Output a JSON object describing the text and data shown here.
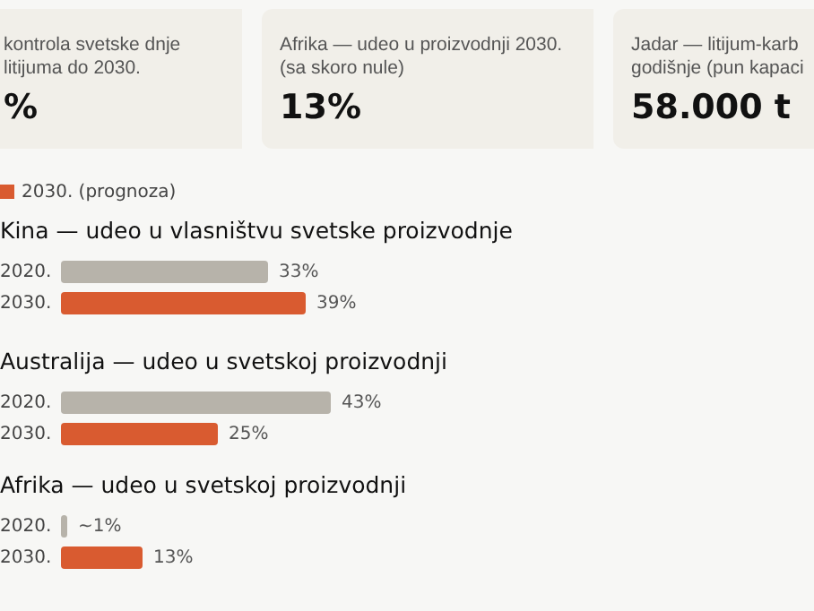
{
  "chart_data": [
    {
      "type": "other",
      "annotations": [
        "kontrola svetske dnje litijuma do 2030.",
        "%",
        "Afrika — udeo u proizvodnji 2030. (sa skoro nule)",
        "13%",
        "Jadar — litijum-karb godišnje (pun kapaci",
        "58.000 t"
      ]
    },
    {
      "type": "bar",
      "orientation": "horizontal",
      "title": "Kina — udeo u vlasništvu svetske proizvodnje",
      "categories": [
        "2020.",
        "2030."
      ],
      "legend": "top left",
      "series": [
        {
          "color": "#b7b3aa",
          "values": [
            33,
            null
          ],
          "value_labels": [
            "33%",
            null
          ]
        },
        {
          "name": "2030. (prognoza)",
          "color": "#d95b30",
          "values": [
            null,
            39
          ],
          "value_labels": [
            null,
            "39%"
          ]
        }
      ]
    },
    {
      "type": "bar",
      "orientation": "horizontal",
      "title": "Australija — udeo u svetskoj proizvodnji",
      "categories": [
        "2020.",
        "2030."
      ],
      "series": [
        {
          "color": "#b7b3aa",
          "values": [
            43,
            null
          ],
          "value_labels": [
            "43%",
            null
          ]
        },
        {
          "color": "#d95b30",
          "values": [
            null,
            25
          ],
          "value_labels": [
            null,
            "25%"
          ]
        }
      ]
    },
    {
      "type": "bar",
      "orientation": "horizontal",
      "title": "Afrika — udeo u svetskoj proizvodnji",
      "categories": [
        "2020.",
        "2030."
      ],
      "series": [
        {
          "color": "#b7b3aa",
          "values": [
            1,
            null
          ],
          "value_labels": [
            "~1%",
            null
          ]
        },
        {
          "color": "#d95b30",
          "values": [
            null,
            13
          ],
          "value_labels": [
            null,
            "13%"
          ]
        }
      ]
    }
  ]
}
